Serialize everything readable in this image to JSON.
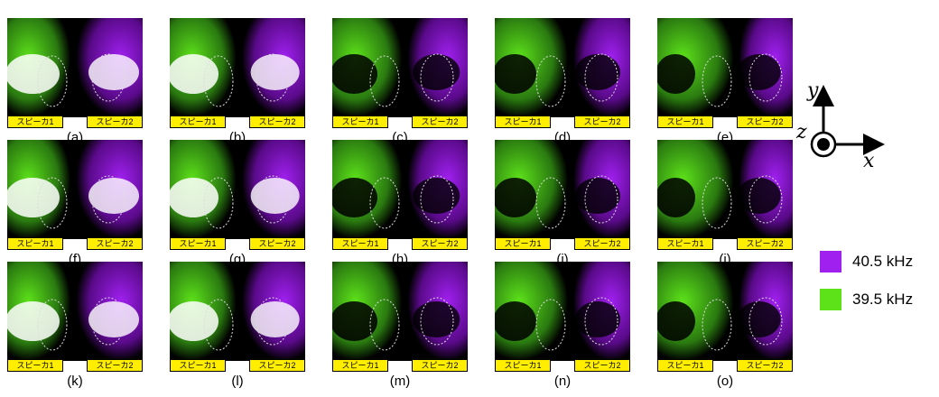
{
  "panels": [
    {
      "caption": "(a)",
      "left_label": "スピーカ1",
      "right_label": "スピーカ2"
    },
    {
      "caption": "(b)",
      "left_label": "スピーカ1",
      "right_label": "スピーカ2"
    },
    {
      "caption": "(c)",
      "left_label": "スピーカ1",
      "right_label": "スピーカ2"
    },
    {
      "caption": "(d)",
      "left_label": "スピーカ1",
      "right_label": "スピーカ2"
    },
    {
      "caption": "(e)",
      "left_label": "スピーカ1",
      "right_label": "スピーカ2"
    },
    {
      "caption": "(f)",
      "left_label": "スピーカ1",
      "right_label": "スピーカ2"
    },
    {
      "caption": "(g)",
      "left_label": "スピーカ1",
      "right_label": "スピーカ2"
    },
    {
      "caption": "(h)",
      "left_label": "スピーカ1",
      "right_label": "スピーカ2"
    },
    {
      "caption": "(i)",
      "left_label": "スピーカ1",
      "right_label": "スピーカ2"
    },
    {
      "caption": "(j)",
      "left_label": "スピーカ1",
      "right_label": "スピーカ2"
    },
    {
      "caption": "(k)",
      "left_label": "スピーカ1",
      "right_label": "スピーカ2"
    },
    {
      "caption": "(l)",
      "left_label": "スピーカ1",
      "right_label": "スピーカ2"
    },
    {
      "caption": "(m)",
      "left_label": "スピーカ1",
      "right_label": "スピーカ2"
    },
    {
      "caption": "(n)",
      "left_label": "スピーカ1",
      "right_label": "スピーカ2"
    },
    {
      "caption": "(o)",
      "left_label": "スピーカ1",
      "right_label": "スピーカ2"
    }
  ],
  "axes": {
    "y": "y",
    "z": "z",
    "x": "x"
  },
  "legend": [
    {
      "label": "40.5 kHz",
      "color": "#a020f0"
    },
    {
      "label": "39.5 kHz",
      "color": "#5de21a"
    }
  ],
  "colors": {
    "label_bg": "#ffee00",
    "purple": "#a020f0",
    "green": "#5de21a"
  }
}
